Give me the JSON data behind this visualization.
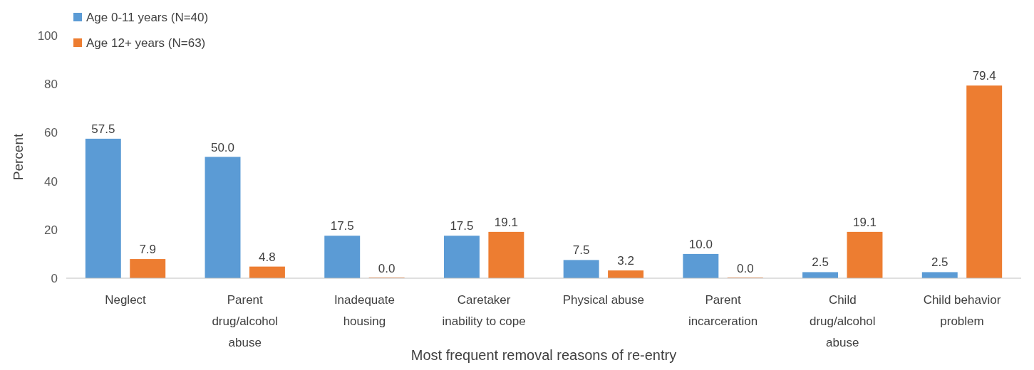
{
  "chart_data": {
    "type": "bar",
    "xlabel": "Most frequent removal reasons of re-entry",
    "ylabel": "Percent",
    "categories": [
      "Neglect",
      "Parent drug/alcohol abuse",
      "Inadequate housing",
      "Caretaker inability to cope",
      "Physical abuse",
      "Parent incarceration",
      "Child drug/alcohol abuse",
      "Child behavior problem"
    ],
    "series": [
      {
        "name": "Age 0-11 years (N=40)",
        "color": "#5b9bd5",
        "values": [
          57.5,
          50.0,
          17.5,
          17.5,
          7.5,
          10.0,
          2.5,
          2.5
        ],
        "value_labels": [
          "57.5",
          "50.0",
          "17.5",
          "17.5",
          "7.5",
          "10.0",
          "2.5",
          "2.5"
        ]
      },
      {
        "name": "Age 12+ years (N=63)",
        "color": "#ed7d31",
        "values": [
          7.9,
          4.8,
          0.0,
          19.1,
          3.2,
          0.0,
          19.1,
          79.4
        ],
        "value_labels": [
          "7.9",
          "4.8",
          "0.0",
          "19.1",
          "3.2",
          "0.0",
          "19.1",
          "79.4"
        ]
      }
    ],
    "ylim": [
      0,
      100
    ],
    "yticks": [
      0,
      20,
      40,
      60,
      80,
      100
    ],
    "grid": false,
    "legend": "top left"
  }
}
